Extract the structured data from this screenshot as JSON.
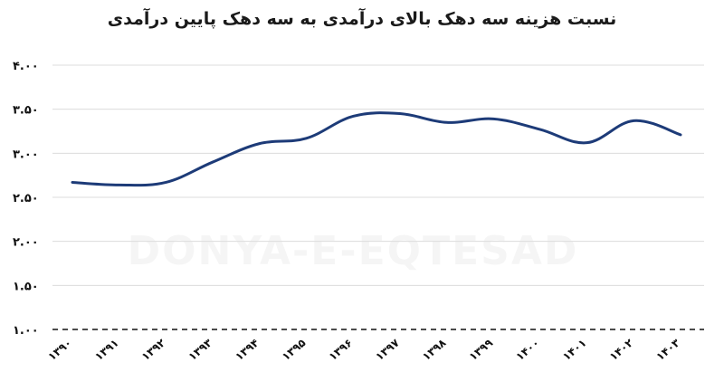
{
  "chart_data": {
    "type": "line",
    "title": "نسبت هزینه سه دهک بالای درآمدی به سه دهک پایین درآمدی",
    "watermark": "DONYA-E-EQTESAD",
    "x": [
      "۱۳۹۰",
      "۱۳۹۱",
      "۱۳۹۲",
      "۱۳۹۳",
      "۱۳۹۴",
      "۱۳۹۵",
      "۱۳۹۶",
      "۱۳۹۷",
      "۱۳۹۸",
      "۱۳۹۹",
      "۱۴۰۰",
      "۱۴۰۱",
      "۱۴۰۲",
      "۱۴۰۳"
    ],
    "series": [
      {
        "values": [
          2.67,
          2.64,
          2.67,
          2.9,
          3.11,
          3.17,
          3.42,
          3.45,
          3.35,
          3.39,
          3.27,
          3.12,
          3.37,
          3.21
        ]
      }
    ],
    "yticks": [
      "۱.۰۰",
      "۱.۵۰",
      "۲.۰۰",
      "۲.۵۰",
      "۳.۰۰",
      "۳.۵۰",
      "۴.۰۰"
    ],
    "ytick_values": [
      1.0,
      1.5,
      2.0,
      2.5,
      3.0,
      3.5,
      4.0
    ],
    "ylim": [
      1.0,
      4.0
    ],
    "grid": true,
    "baseline_style": "dashed",
    "colors": {
      "line": "#1d3b78",
      "grid": "#dcdcdc"
    }
  }
}
